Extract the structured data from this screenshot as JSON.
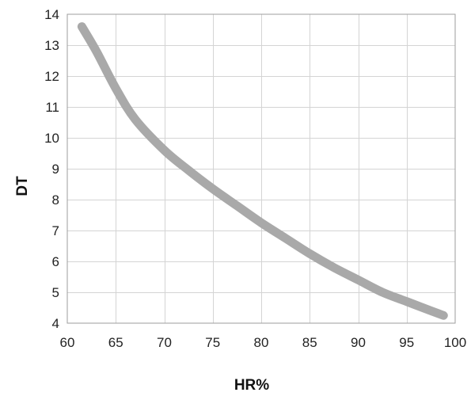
{
  "chart_data": {
    "type": "line",
    "title": "",
    "xlabel": "HR%",
    "ylabel": "DT",
    "xlim": [
      60,
      100
    ],
    "ylim": [
      4,
      14
    ],
    "x_ticks": [
      60,
      65,
      70,
      75,
      80,
      85,
      90,
      95,
      100
    ],
    "y_ticks": [
      4,
      5,
      6,
      7,
      8,
      9,
      10,
      11,
      12,
      13,
      14
    ],
    "grid": true,
    "legend": "none",
    "line_color": "#a9a9a9",
    "grid_color": "#d4d4d4",
    "series": [
      {
        "x": [
          61.5,
          63,
          65,
          67,
          70,
          72.5,
          75,
          77.5,
          80,
          82.5,
          85,
          87.5,
          90,
          92.5,
          95,
          97.5,
          98.8
        ],
        "y": [
          13.6,
          12.8,
          11.6,
          10.6,
          9.6,
          8.95,
          8.35,
          7.8,
          7.25,
          6.75,
          6.25,
          5.8,
          5.4,
          5.0,
          4.7,
          4.4,
          4.25
        ]
      }
    ]
  }
}
